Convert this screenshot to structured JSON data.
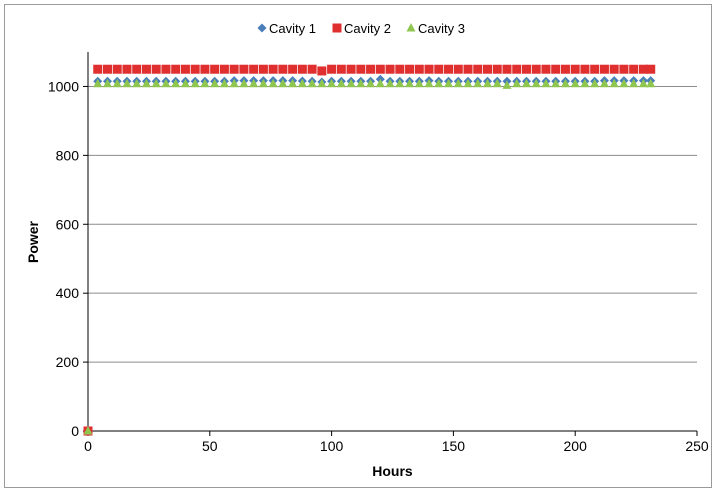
{
  "chart_data": {
    "type": "scatter",
    "title": "",
    "xlabel": "Hours",
    "ylabel": "Power",
    "xlim": [
      0,
      250
    ],
    "ylim": [
      0,
      1100
    ],
    "xticks": [
      0,
      50,
      100,
      150,
      200,
      250
    ],
    "yticks": [
      0,
      200,
      400,
      600,
      800,
      1000
    ],
    "grid": "horizontal",
    "legend_position": "top",
    "series": [
      {
        "name": "Cavity 1",
        "marker": "diamond",
        "color": "#4a7ebb",
        "points": [
          [
            0,
            0
          ],
          [
            4,
            1015
          ],
          [
            8,
            1015
          ],
          [
            12,
            1015
          ],
          [
            16,
            1015
          ],
          [
            20,
            1015
          ],
          [
            24,
            1015
          ],
          [
            28,
            1015
          ],
          [
            32,
            1015
          ],
          [
            36,
            1015
          ],
          [
            40,
            1015
          ],
          [
            44,
            1015
          ],
          [
            48,
            1015
          ],
          [
            52,
            1015
          ],
          [
            56,
            1015
          ],
          [
            60,
            1017
          ],
          [
            64,
            1017
          ],
          [
            68,
            1017
          ],
          [
            72,
            1017
          ],
          [
            76,
            1017
          ],
          [
            80,
            1017
          ],
          [
            84,
            1017
          ],
          [
            88,
            1016
          ],
          [
            92,
            1015
          ],
          [
            96,
            1013
          ],
          [
            100,
            1015
          ],
          [
            104,
            1015
          ],
          [
            108,
            1015
          ],
          [
            112,
            1015
          ],
          [
            116,
            1015
          ],
          [
            120,
            1021
          ],
          [
            124,
            1015
          ],
          [
            128,
            1015
          ],
          [
            132,
            1015
          ],
          [
            136,
            1015
          ],
          [
            140,
            1017
          ],
          [
            144,
            1015
          ],
          [
            148,
            1015
          ],
          [
            152,
            1015
          ],
          [
            156,
            1015
          ],
          [
            160,
            1015
          ],
          [
            164,
            1015
          ],
          [
            168,
            1015
          ],
          [
            172,
            1015
          ],
          [
            176,
            1015
          ],
          [
            180,
            1015
          ],
          [
            184,
            1015
          ],
          [
            188,
            1015
          ],
          [
            192,
            1015
          ],
          [
            196,
            1015
          ],
          [
            200,
            1015
          ],
          [
            204,
            1015
          ],
          [
            208,
            1015
          ],
          [
            212,
            1017
          ],
          [
            216,
            1017
          ],
          [
            220,
            1017
          ],
          [
            224,
            1017
          ],
          [
            228,
            1017
          ],
          [
            231,
            1017
          ]
        ]
      },
      {
        "name": "Cavity 2",
        "marker": "square",
        "color": "#e02f2f",
        "points": [
          [
            0,
            0
          ],
          [
            4,
            1050
          ],
          [
            8,
            1050
          ],
          [
            12,
            1050
          ],
          [
            16,
            1050
          ],
          [
            20,
            1050
          ],
          [
            24,
            1050
          ],
          [
            28,
            1050
          ],
          [
            32,
            1050
          ],
          [
            36,
            1050
          ],
          [
            40,
            1050
          ],
          [
            44,
            1050
          ],
          [
            48,
            1050
          ],
          [
            52,
            1050
          ],
          [
            56,
            1050
          ],
          [
            60,
            1050
          ],
          [
            64,
            1050
          ],
          [
            68,
            1050
          ],
          [
            72,
            1050
          ],
          [
            76,
            1050
          ],
          [
            80,
            1050
          ],
          [
            84,
            1050
          ],
          [
            88,
            1050
          ],
          [
            92,
            1050
          ],
          [
            96,
            1045
          ],
          [
            100,
            1050
          ],
          [
            104,
            1050
          ],
          [
            108,
            1050
          ],
          [
            112,
            1050
          ],
          [
            116,
            1050
          ],
          [
            120,
            1050
          ],
          [
            124,
            1050
          ],
          [
            128,
            1050
          ],
          [
            132,
            1050
          ],
          [
            136,
            1050
          ],
          [
            140,
            1050
          ],
          [
            144,
            1050
          ],
          [
            148,
            1050
          ],
          [
            152,
            1050
          ],
          [
            156,
            1050
          ],
          [
            160,
            1050
          ],
          [
            164,
            1050
          ],
          [
            168,
            1050
          ],
          [
            172,
            1050
          ],
          [
            176,
            1050
          ],
          [
            180,
            1050
          ],
          [
            184,
            1050
          ],
          [
            188,
            1050
          ],
          [
            192,
            1050
          ],
          [
            196,
            1050
          ],
          [
            200,
            1050
          ],
          [
            204,
            1050
          ],
          [
            208,
            1050
          ],
          [
            212,
            1050
          ],
          [
            216,
            1050
          ],
          [
            220,
            1050
          ],
          [
            224,
            1050
          ],
          [
            228,
            1050
          ],
          [
            231,
            1050
          ]
        ]
      },
      {
        "name": "Cavity 3",
        "marker": "triangle",
        "color": "#8fc650",
        "points": [
          [
            0,
            0
          ],
          [
            4,
            1008
          ],
          [
            8,
            1008
          ],
          [
            12,
            1008
          ],
          [
            16,
            1008
          ],
          [
            20,
            1008
          ],
          [
            24,
            1008
          ],
          [
            28,
            1008
          ],
          [
            32,
            1008
          ],
          [
            36,
            1008
          ],
          [
            40,
            1008
          ],
          [
            44,
            1008
          ],
          [
            48,
            1008
          ],
          [
            52,
            1008
          ],
          [
            56,
            1008
          ],
          [
            60,
            1008
          ],
          [
            64,
            1008
          ],
          [
            68,
            1008
          ],
          [
            72,
            1008
          ],
          [
            76,
            1008
          ],
          [
            80,
            1008
          ],
          [
            84,
            1008
          ],
          [
            88,
            1008
          ],
          [
            92,
            1008
          ],
          [
            96,
            1008
          ],
          [
            100,
            1008
          ],
          [
            104,
            1008
          ],
          [
            108,
            1008
          ],
          [
            112,
            1008
          ],
          [
            116,
            1008
          ],
          [
            120,
            1008
          ],
          [
            124,
            1008
          ],
          [
            128,
            1008
          ],
          [
            132,
            1008
          ],
          [
            136,
            1008
          ],
          [
            140,
            1008
          ],
          [
            144,
            1008
          ],
          [
            148,
            1008
          ],
          [
            152,
            1008
          ],
          [
            156,
            1008
          ],
          [
            160,
            1008
          ],
          [
            164,
            1008
          ],
          [
            168,
            1008
          ],
          [
            172,
            1003
          ],
          [
            176,
            1008
          ],
          [
            180,
            1008
          ],
          [
            184,
            1008
          ],
          [
            188,
            1008
          ],
          [
            192,
            1008
          ],
          [
            196,
            1008
          ],
          [
            200,
            1008
          ],
          [
            204,
            1008
          ],
          [
            208,
            1008
          ],
          [
            212,
            1008
          ],
          [
            216,
            1008
          ],
          [
            220,
            1008
          ],
          [
            224,
            1008
          ],
          [
            228,
            1008
          ],
          [
            231,
            1008
          ]
        ]
      }
    ]
  }
}
